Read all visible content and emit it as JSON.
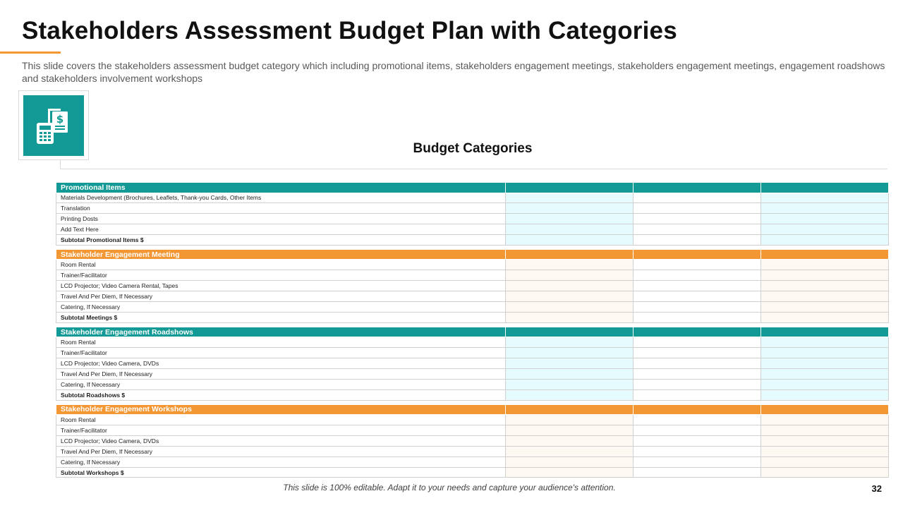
{
  "slide": {
    "title": "Stakeholders Assessment Budget Plan with Categories",
    "subtitle": "This slide covers the stakeholders assessment budget category which including promotional items, stakeholders engagement meetings, stakeholders engagement meetings, engagement roadshows and stakeholders involvement workshops",
    "icon": "budget-document-calculator-icon",
    "section_title": "Budget Categories",
    "footer_note": "This slide is 100% editable. Adapt it to your needs and capture your audience's attention.",
    "page_number": "32"
  },
  "colors": {
    "teal": "#139a97",
    "orange": "#f39634",
    "teal_light": "#e6fbfd",
    "orange_light": "#fef8f2"
  },
  "table": {
    "groups": [
      {
        "name": "Promotional Items",
        "theme": "teal",
        "items": [
          "Materials Development (Brochures, Leaflets, Thank-you Cards, Other Items",
          "Translation",
          "Printing Dosts",
          "Add Text Here"
        ],
        "subtotal": "Subtotal Promotional Items $"
      },
      {
        "name": "Stakeholder Engagement Meeting",
        "theme": "orange",
        "items": [
          "Room Rental",
          "Trainer/Facilitator",
          "LCD Projector; Video Camera Rental, Tapes",
          "Travel And Per Diem, If Necessary",
          "Catering, If Necessary"
        ],
        "subtotal": "Subtotal Meetings $"
      },
      {
        "name": "Stakeholder Engagement Roadshows",
        "theme": "teal",
        "items": [
          "Room Rental",
          "Trainer/Facilitator",
          "LCD Projector; Video Camera, DVDs",
          "Travel And Per Diem, If Necessary",
          "Catering, If Necessary"
        ],
        "subtotal": "Subtotal Roadshows $"
      },
      {
        "name": "Stakeholder Engagement Workshops",
        "theme": "orange",
        "items": [
          "Room Rental",
          "Trainer/Facilitator",
          "LCD Projector; Video Camera, DVDs",
          "Travel And Per Diem, If Necessary",
          "Catering, If Necessary"
        ],
        "subtotal": "Subtotal Workshops $"
      }
    ]
  }
}
